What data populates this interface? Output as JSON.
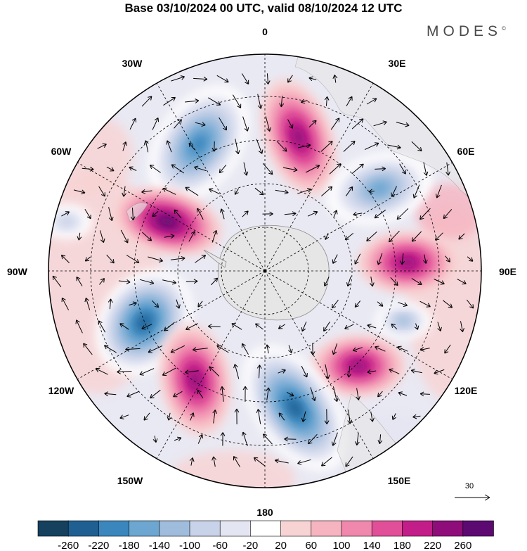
{
  "title": "Base 03/10/2024 00 UTC, valid 08/10/2024 12 UTC",
  "brand": "MODES",
  "brand_mark": "©",
  "map": {
    "projection": "south-polar-stereographic",
    "longitude_labels": [
      "0",
      "30E",
      "60E",
      "90E",
      "120E",
      "150E",
      "180",
      "150W",
      "120W",
      "90W",
      "60W",
      "30W"
    ],
    "wind_reference_label": "30",
    "colors": {
      "land": "#e6e6e6",
      "coast": "#8c8c8c",
      "grid": "#000000",
      "arrow": "#000000"
    }
  },
  "anomaly_centers": [
    {
      "name": "positive near 15E",
      "sign": "positive",
      "peak": 180
    },
    {
      "name": "negative near 25W",
      "sign": "negative",
      "peak": -180
    },
    {
      "name": "negative near 60E",
      "sign": "negative",
      "peak": -140
    },
    {
      "name": "positive near 60W",
      "sign": "positive",
      "peak": 220
    },
    {
      "name": "negative near 80W",
      "sign": "negative",
      "peak": -60
    },
    {
      "name": "positive near 90E",
      "sign": "positive",
      "peak": 180
    },
    {
      "name": "negative near 100E",
      "sign": "negative",
      "peak": -100
    },
    {
      "name": "negative near 120W",
      "sign": "negative",
      "peak": -220
    },
    {
      "name": "positive near 125E",
      "sign": "positive",
      "peak": 180
    },
    {
      "name": "positive near 150W",
      "sign": "positive",
      "peak": 200
    },
    {
      "name": "negative near 175E",
      "sign": "negative",
      "peak": -220
    }
  ],
  "colorbar": {
    "ticks": [
      "-260",
      "-220",
      "-180",
      "-140",
      "-100",
      "-60",
      "-20",
      "20",
      "60",
      "100",
      "140",
      "180",
      "220",
      "260"
    ],
    "colors": [
      "#15405e",
      "#1f5f92",
      "#3a86bd",
      "#6ca6d1",
      "#9fbcdc",
      "#c8d2e8",
      "#e4e5f2",
      "#ffffff",
      "#f8d3d3",
      "#f6b3c0",
      "#f087ad",
      "#e04f97",
      "#c21d88",
      "#8f0c7b",
      "#5c0a72"
    ]
  }
}
